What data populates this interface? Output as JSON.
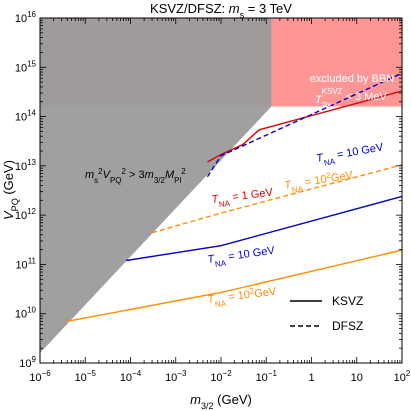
{
  "chart_data": {
    "type": "line",
    "title_parts": [
      "KSVZ/DFSZ:  ",
      "m",
      "s",
      " = 3 TeV"
    ],
    "xlabel_parts": [
      "m",
      "3/2",
      " (GeV)"
    ],
    "ylabel_parts": [
      "V",
      "PQ",
      " (GeV)"
    ],
    "x_scale": "log",
    "y_scale": "log",
    "xlim": [
      1e-06,
      100
    ],
    "ylim": [
      1000000000.0,
      1e+16
    ],
    "x_tick_base": "10",
    "x_ticks": [
      {
        "value": 1e-06,
        "label": "",
        "exp": "−6"
      },
      {
        "value": 1e-05,
        "label": "",
        "exp": "−5"
      },
      {
        "value": 0.0001,
        "label": "",
        "exp": "−4"
      },
      {
        "value": 0.001,
        "label": "",
        "exp": "−3"
      },
      {
        "value": 0.01,
        "label": "",
        "exp": "−2"
      },
      {
        "value": 0.1,
        "label": "",
        "exp": "−1"
      },
      {
        "value": 1,
        "label": "1",
        "exp": ""
      },
      {
        "value": 10,
        "label": "10",
        "exp": ""
      },
      {
        "value": 100,
        "label": "",
        "exp": "2"
      }
    ],
    "y_ticks": [
      {
        "value": 1000000000.0,
        "exp": "9"
      },
      {
        "value": 10000000000.0,
        "exp": "10"
      },
      {
        "value": 100000000000.0,
        "exp": "11"
      },
      {
        "value": 1000000000000.0,
        "exp": "12"
      },
      {
        "value": 10000000000000.0,
        "exp": "13"
      },
      {
        "value": 100000000000000.0,
        "exp": "14"
      },
      {
        "value": 1000000000000000.0,
        "exp": "15"
      },
      {
        "value": 1e+16,
        "exp": "16"
      }
    ],
    "regions": {
      "bbn_excluded": {
        "color": "#ff9696",
        "label_line1": "excluded by BBN",
        "label_line2_parts": [
          "T",
          "Rs",
          "KSVZ",
          " < 3 MeV"
        ],
        "vpq_lower": 160000000000000.0
      },
      "gray_excluded": {
        "color": "#9b9b9b",
        "label_parts": [
          "m",
          "s",
          "2",
          "V",
          "PQ",
          "2",
          " > 3",
          "m",
          "3/2",
          "M",
          "Pl",
          "2"
        ],
        "boundary": [
          [
            1e-06,
            1600000000.0
          ],
          [
            0.13,
            160000000000000.0
          ]
        ]
      }
    },
    "series": [
      {
        "model": "KSVZ",
        "color": "#0000cc",
        "style": "solid",
        "label_parts": [
          "T",
          "NA",
          " = 10 GeV"
        ],
        "x": [
          8e-05,
          0.01,
          100
        ],
        "y": [
          120000000000.0,
          240000000000.0,
          2400000000000.0
        ]
      },
      {
        "model": "KSVZ",
        "color": "#ff8c00",
        "style": "solid",
        "label_parts": [
          "T",
          "NA",
          " = 10",
          "2",
          "GeV"
        ],
        "x": [
          4e-06,
          0.01,
          100
        ],
        "y": [
          7000000000.0,
          27000000000.0,
          195000000000.0
        ]
      },
      {
        "model": "KSVZ",
        "color": "#dd0000",
        "style": "solid",
        "label_parts": [
          "T",
          "NA",
          " = 1 GeV"
        ],
        "x": [
          0.005,
          0.01,
          0.03,
          0.07,
          100
        ],
        "y": [
          12000000000000.0,
          17000000000000.0,
          27000000000000.0,
          54000000000000.0,
          330000000000000.0
        ]
      },
      {
        "model": "DFSZ",
        "color": "#0000cc",
        "style": "dashed",
        "label_parts": [
          "T",
          "NA",
          " = 10 GeV"
        ],
        "x": [
          0.005,
          0.01,
          100
        ],
        "y": [
          6000000000000.0,
          16000000000000.0,
          760000000000000.0
        ]
      },
      {
        "model": "DFSZ",
        "color": "#ff8c00",
        "style": "dashed",
        "label_parts": [
          "T",
          "NA",
          " = 10",
          "2",
          "GeV"
        ],
        "x": [
          0.0003,
          0.01,
          100
        ],
        "y": [
          440000000000.0,
          1100000000000.0,
          10500000000000.0
        ]
      }
    ],
    "legend": {
      "placement": "bottom-right",
      "entries": [
        {
          "label": "KSVZ",
          "style": "solid"
        },
        {
          "label": "DFSZ",
          "style": "dashed"
        }
      ]
    },
    "grid": false
  }
}
